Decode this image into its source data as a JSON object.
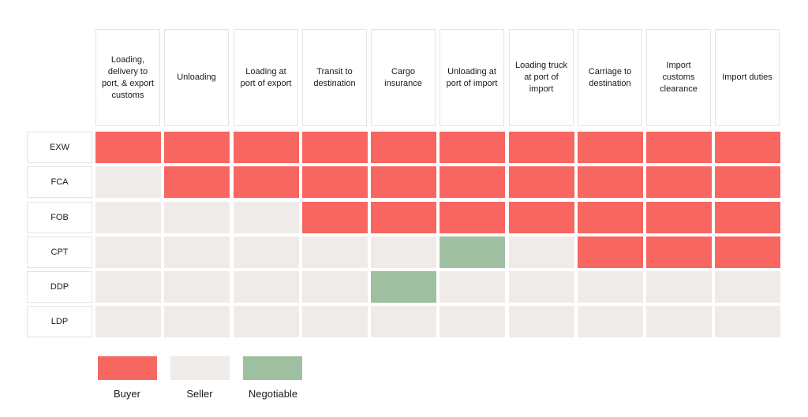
{
  "columns": [
    "Loading, delivery to port, & export customs",
    "Unloading",
    "Loading at port of export",
    "Transit to destination",
    "Cargo insurance",
    "Unloading at port of import",
    "Loading truck at port of import",
    "Carriage to destination",
    "Import customs clearance",
    "Import duties"
  ],
  "rows": [
    {
      "label": "EXW",
      "cells": [
        "buyer",
        "buyer",
        "buyer",
        "buyer",
        "buyer",
        "buyer",
        "buyer",
        "buyer",
        "buyer",
        "buyer"
      ]
    },
    {
      "label": "FCA",
      "cells": [
        "seller",
        "buyer",
        "buyer",
        "buyer",
        "buyer",
        "buyer",
        "buyer",
        "buyer",
        "buyer",
        "buyer"
      ]
    },
    {
      "label": "FOB",
      "cells": [
        "seller",
        "seller",
        "seller",
        "buyer",
        "buyer",
        "buyer",
        "buyer",
        "buyer",
        "buyer",
        "buyer"
      ]
    },
    {
      "label": "CPT",
      "cells": [
        "seller",
        "seller",
        "seller",
        "seller",
        "seller",
        "negotiable",
        "seller",
        "buyer",
        "buyer",
        "buyer"
      ]
    },
    {
      "label": "DDP",
      "cells": [
        "seller",
        "seller",
        "seller",
        "seller",
        "negotiable",
        "seller",
        "seller",
        "seller",
        "seller",
        "seller"
      ]
    },
    {
      "label": "LDP",
      "cells": [
        "seller",
        "seller",
        "seller",
        "seller",
        "seller",
        "seller",
        "seller",
        "seller",
        "seller",
        "seller"
      ]
    }
  ],
  "legend": [
    {
      "key": "buyer",
      "label": "Buyer",
      "color": "#f76661"
    },
    {
      "key": "seller",
      "label": "Seller",
      "color": "#efebe8"
    },
    {
      "key": "negotiable",
      "label": "Negotiable",
      "color": "#9fbfa1"
    }
  ]
}
